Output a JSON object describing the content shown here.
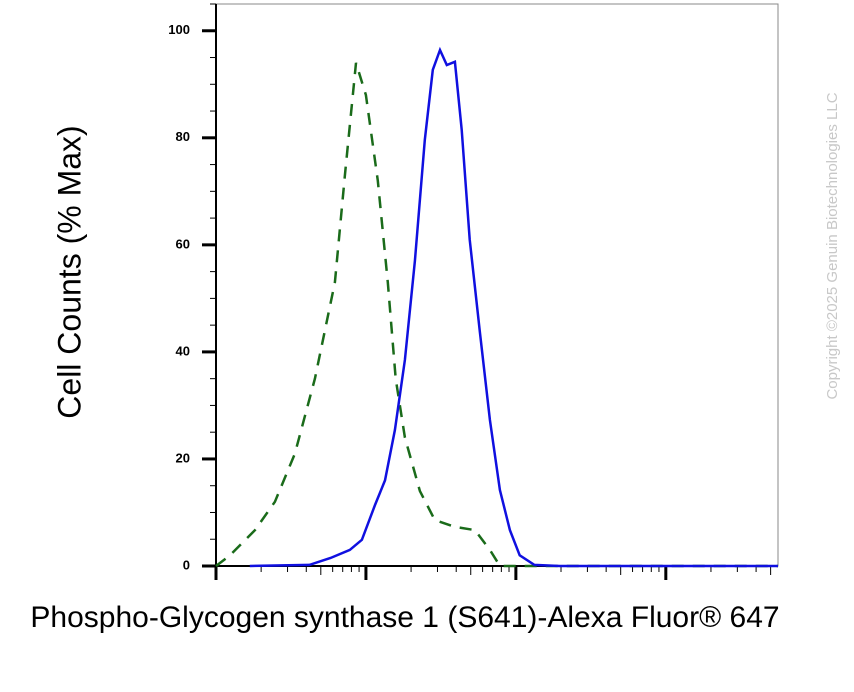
{
  "chart_data": {
    "type": "line",
    "x_label": "Phospho-Glycogen synthase 1 (S641)-Alexa Fluor® 647",
    "y_label": "Cell Counts (% Max)",
    "watermark": "Copyright ©2025 Genuin Biotechnologies LLC",
    "xscale": "log",
    "xlim": [
      1,
      5600
    ],
    "xticks": [
      1,
      10,
      100,
      1000
    ],
    "ylim": [
      0,
      105
    ],
    "yticks": [
      0,
      20,
      40,
      60,
      80,
      100
    ],
    "series": [
      {
        "color": "#1a6b1a",
        "dash": true,
        "x": [
          1,
          1.24,
          1.82,
          2.47,
          3.36,
          4.57,
          6.21,
          7.24,
          8.58,
          10,
          12.0,
          14.0,
          15.8,
          18.2,
          22.9,
          28.8,
          39.2,
          53.3,
          67.1,
          78.2,
          363,
          5600
        ],
        "values": [
          0,
          2,
          6.7,
          12,
          21,
          35,
          53,
          73,
          94,
          88,
          72,
          53,
          35,
          24,
          14,
          8.6,
          7.3,
          6.7,
          3,
          0,
          0,
          0
        ]
      },
      {
        "color": "#1010e0",
        "dash": false,
        "x": [
          1.68,
          4.2,
          5.8,
          7.8,
          9.4,
          11.5,
          13.4,
          15.6,
          18.2,
          21.2,
          24.7,
          27.9,
          31.2,
          34.6,
          39.2,
          43.5,
          49.2,
          57.4,
          67.1,
          78.2,
          91.2,
          106,
          133,
          196,
          5600
        ],
        "values": [
          0,
          0.2,
          1.5,
          3,
          4.9,
          11.4,
          16,
          25.4,
          38.5,
          57,
          79.6,
          92.7,
          96.4,
          93.6,
          94.2,
          81.5,
          61,
          44,
          27.3,
          14.2,
          6.7,
          2,
          0.2,
          0,
          0
        ]
      }
    ]
  }
}
